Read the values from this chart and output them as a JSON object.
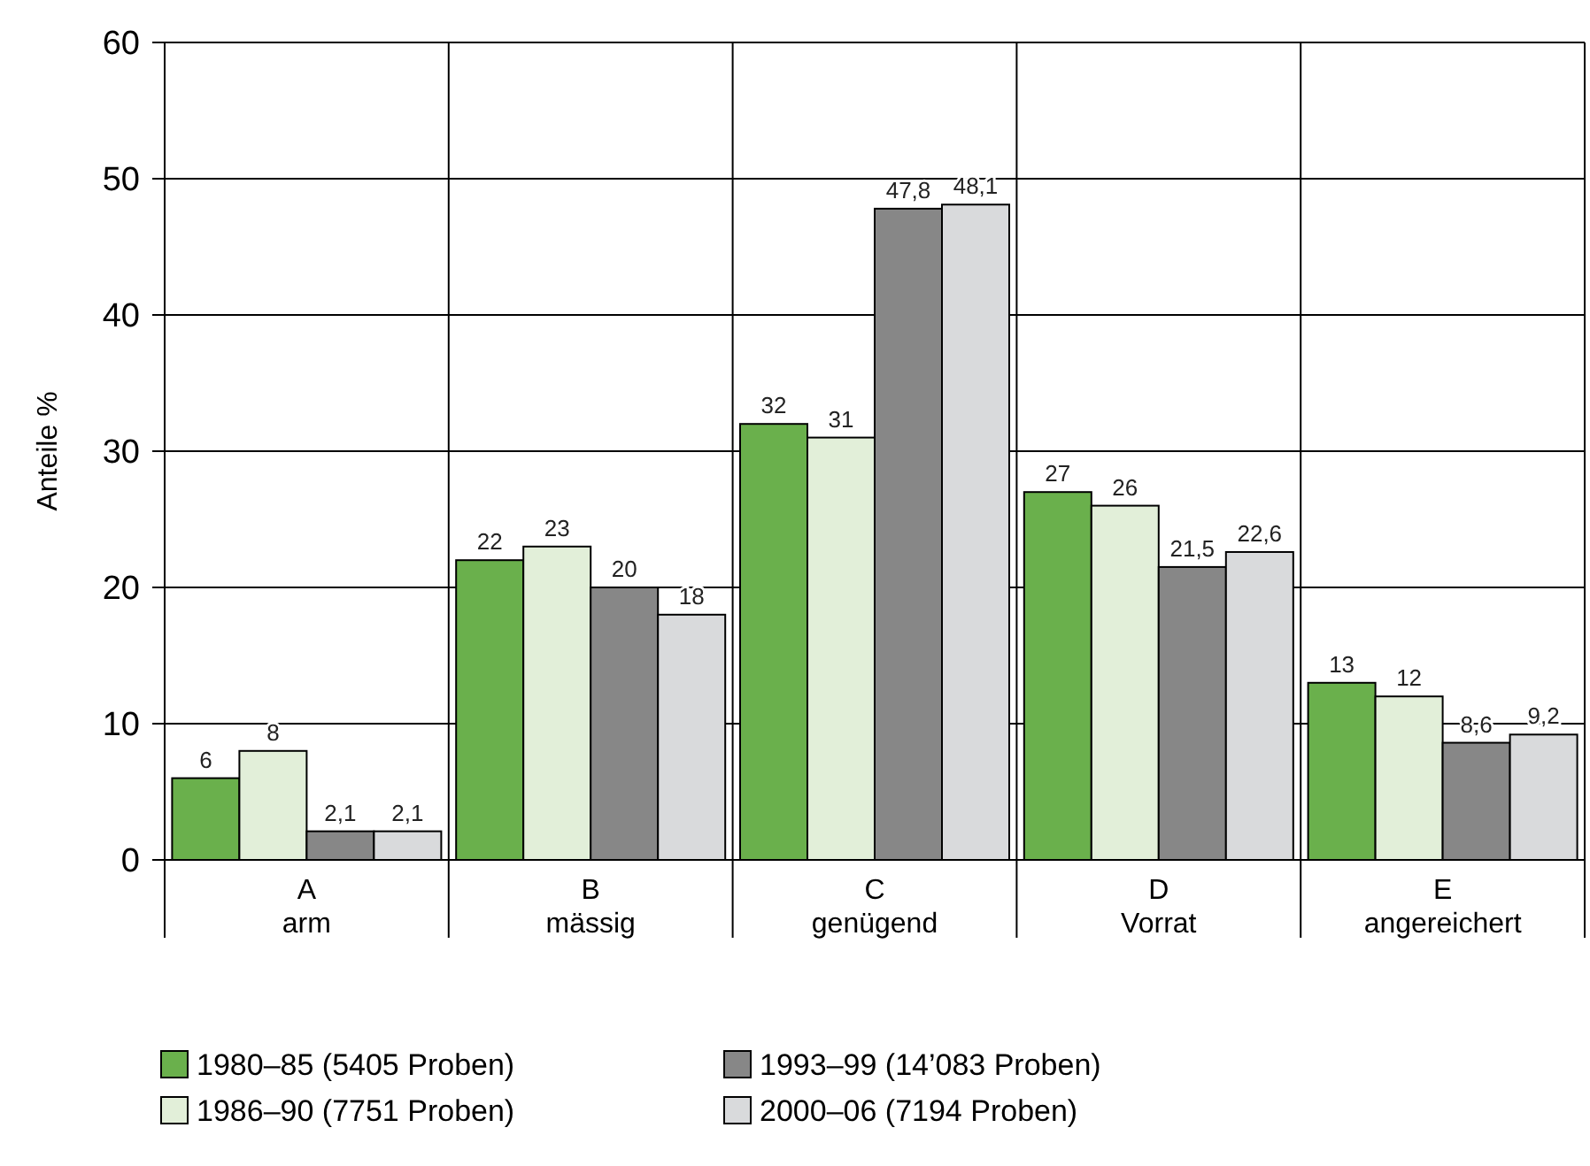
{
  "chart_data": {
    "type": "bar",
    "ylabel": "Anteile %",
    "categories": [
      "A\narm",
      "B\nmässig",
      "C\ngenügend",
      "D\nVorrat",
      "E\nangereichert"
    ],
    "series": [
      {
        "name": "1980–85 (5405 Proben)",
        "color": "#6ab04c",
        "values": [
          6,
          22,
          32,
          27,
          13
        ],
        "value_labels": [
          "6",
          "22",
          "32",
          "27",
          "13"
        ]
      },
      {
        "name": "1986–90 (7751 Proben)",
        "color": "#e2efd9",
        "values": [
          8,
          23,
          31,
          26,
          12
        ],
        "value_labels": [
          "8",
          "23",
          "31",
          "26",
          "12"
        ]
      },
      {
        "name": "1993–99 (14’083 Proben)",
        "color": "#878787",
        "values": [
          2.1,
          20,
          47.8,
          21.5,
          8.6
        ],
        "value_labels": [
          "2,1",
          "20",
          "47,8",
          "21,5",
          "8,6"
        ]
      },
      {
        "name": "2000–06 (7194 Proben)",
        "color": "#d9dadc",
        "values": [
          2.1,
          18,
          48.1,
          22.6,
          9.2
        ],
        "value_labels": [
          "2,1",
          "18",
          "48,1",
          "22,6",
          "9,2"
        ]
      }
    ],
    "ylim": [
      0,
      60
    ],
    "yticks": [
      0,
      10,
      20,
      30,
      40,
      50,
      60
    ],
    "grid": true,
    "legend": "bottom"
  }
}
